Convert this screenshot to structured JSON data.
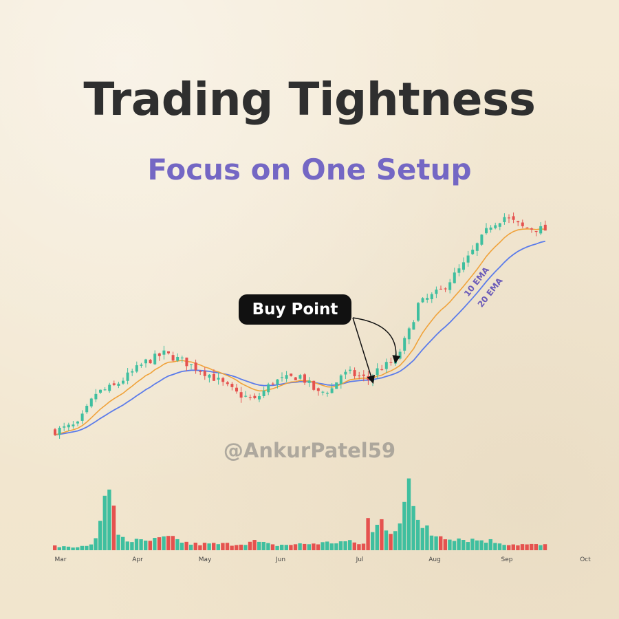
{
  "header": {
    "title": "Trading Tightness",
    "subtitle": "Focus on One Setup"
  },
  "watermark": "@AnkurPatel59",
  "annotation": {
    "label": "Buy Point"
  },
  "colors": {
    "up": "#3fbf9f",
    "down": "#e5524f",
    "ema10": "#f0a23a",
    "ema20": "#5b7bea",
    "title": "#2f2f2f",
    "subtitle": "#7467c4"
  },
  "chart_data": {
    "type": "candlestick",
    "title": "Trading Tightness",
    "subtitle": "Focus on One Setup",
    "x_ticks": [
      "Mar",
      "Apr",
      "May",
      "Jun",
      "Jul",
      "Aug",
      "Sep",
      "Oct"
    ],
    "price_path": [
      [
        0,
        0.08
      ],
      [
        5,
        0.13
      ],
      [
        9,
        0.4
      ],
      [
        13,
        0.46
      ],
      [
        20,
        0.67
      ],
      [
        24,
        0.74
      ],
      [
        28,
        0.68
      ],
      [
        34,
        0.56
      ],
      [
        40,
        0.4
      ],
      [
        44,
        0.34
      ],
      [
        48,
        0.5
      ],
      [
        54,
        0.55
      ],
      [
        58,
        0.4
      ],
      [
        61,
        0.44
      ],
      [
        63,
        0.56
      ],
      [
        65,
        0.57
      ],
      [
        69,
        0.52
      ],
      [
        71,
        0.6
      ],
      [
        75,
        0.68
      ],
      [
        78,
        0.93
      ],
      [
        80,
        1.16
      ],
      [
        85,
        1.28
      ],
      [
        90,
        1.5
      ],
      [
        96,
        1.84
      ],
      [
        99,
        1.91
      ],
      [
        103,
        1.82
      ],
      [
        108,
        1.8
      ]
    ],
    "candle_count": 109,
    "volume_profile": [
      [
        0,
        3
      ],
      [
        7,
        3
      ],
      [
        9,
        8
      ],
      [
        10,
        20
      ],
      [
        11,
        34
      ],
      [
        12,
        43
      ],
      [
        13,
        22
      ],
      [
        14,
        14
      ],
      [
        16,
        8
      ],
      [
        20,
        7
      ],
      [
        25,
        10
      ],
      [
        30,
        5
      ],
      [
        40,
        5
      ],
      [
        44,
        7
      ],
      [
        48,
        4
      ],
      [
        55,
        5
      ],
      [
        60,
        6
      ],
      [
        64,
        7
      ],
      [
        68,
        5
      ],
      [
        70,
        14
      ],
      [
        72,
        24
      ],
      [
        74,
        16
      ],
      [
        77,
        28
      ],
      [
        78,
        46
      ],
      [
        80,
        20
      ],
      [
        82,
        13
      ],
      [
        85,
        12
      ],
      [
        90,
        9
      ],
      [
        95,
        8
      ],
      [
        100,
        5
      ],
      [
        108,
        4
      ]
    ],
    "volume_spikes": {
      "11": 44,
      "12": 49,
      "13": 36,
      "69": 26,
      "77": 39,
      "78": 58,
      "82": 20
    },
    "series": [
      {
        "name": "10 EMA",
        "period": 10
      },
      {
        "name": "20 EMA",
        "period": 20
      }
    ],
    "annotations": [
      {
        "text": "Buy Point",
        "points_to_candles": [
          70,
          75
        ]
      }
    ],
    "grid": false,
    "legend": "inline labels along the EMA lines"
  }
}
